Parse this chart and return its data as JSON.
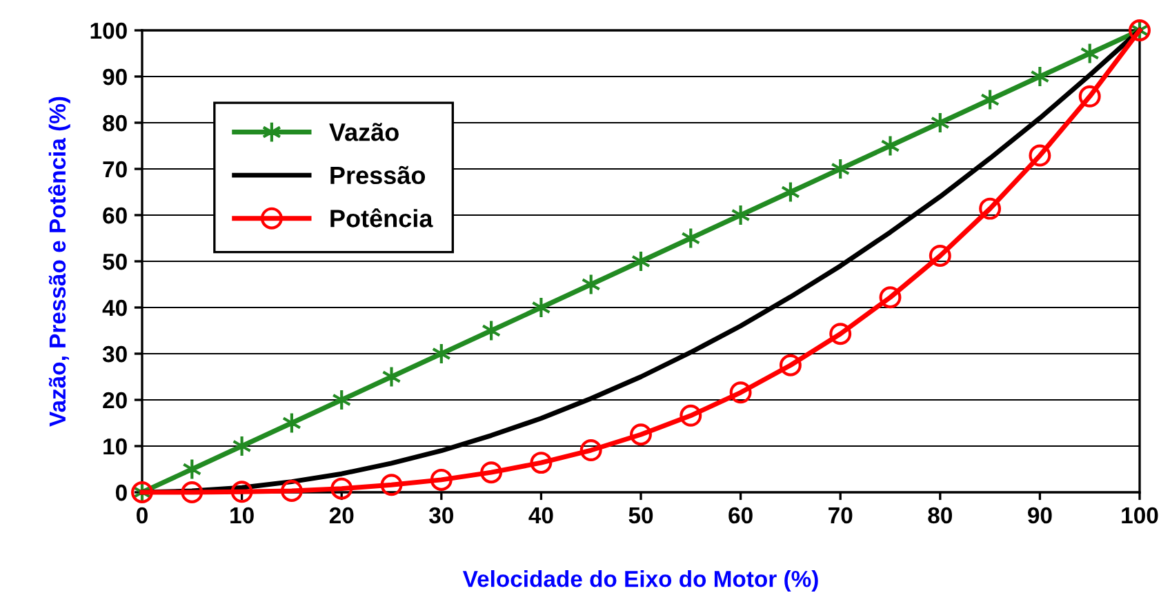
{
  "chart_data": {
    "type": "line",
    "xlabel": "Velocidade do Eixo do Motor (%)",
    "ylabel": "Vazão, Pressão e Potência (%)",
    "x": [
      0,
      5,
      10,
      15,
      20,
      25,
      30,
      35,
      40,
      45,
      50,
      55,
      60,
      65,
      70,
      75,
      80,
      85,
      90,
      95,
      100
    ],
    "series": [
      {
        "name": "Vazão",
        "color": "#228b22",
        "marker": "cross",
        "values": [
          0,
          5,
          10,
          15,
          20,
          25,
          30,
          35,
          40,
          45,
          50,
          55,
          60,
          65,
          70,
          75,
          80,
          85,
          90,
          95,
          100
        ]
      },
      {
        "name": "Pressão",
        "color": "#000000",
        "marker": "none",
        "values": [
          0,
          0.3,
          1,
          2.3,
          4,
          6.3,
          9,
          12.3,
          16,
          20.3,
          25,
          30.3,
          36,
          42.3,
          49,
          56.3,
          64,
          72.3,
          81,
          90.3,
          100
        ]
      },
      {
        "name": "Potência",
        "color": "#ff0000",
        "marker": "circle",
        "values": [
          0,
          0,
          0.1,
          0.3,
          0.8,
          1.6,
          2.7,
          4.3,
          6.4,
          9.1,
          12.5,
          16.6,
          21.6,
          27.5,
          34.3,
          42.2,
          51.2,
          61.4,
          72.9,
          85.7,
          100
        ]
      }
    ],
    "xlim": [
      0,
      100
    ],
    "xticks": [
      0,
      10,
      20,
      30,
      40,
      50,
      60,
      70,
      80,
      90,
      100
    ],
    "ylim": [
      0,
      100
    ],
    "yticks": [
      0,
      10,
      20,
      30,
      40,
      50,
      60,
      70,
      80,
      90,
      100
    ],
    "grid": "y",
    "legend": "top left",
    "line_style": "solid"
  }
}
